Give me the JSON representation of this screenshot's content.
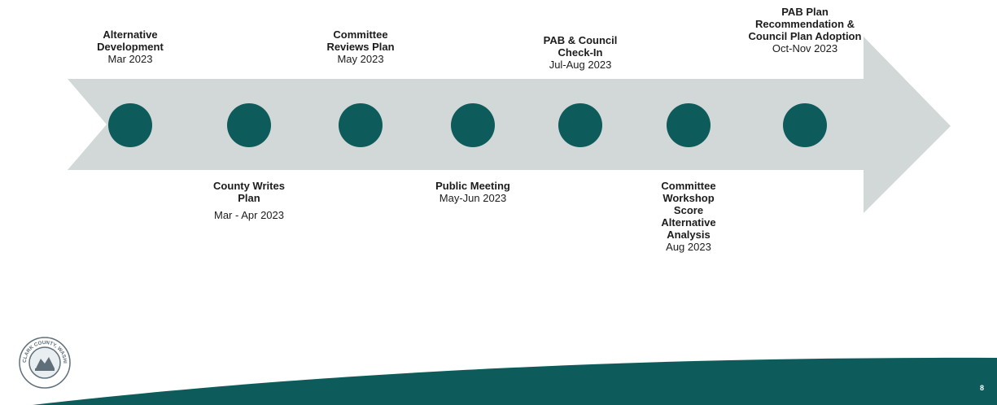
{
  "milestones_top": [
    {
      "title": "Alternative Development",
      "date": "Mar 2023"
    },
    {
      "title": "Committee Reviews Plan",
      "date": "May 2023"
    },
    {
      "title": "PAB & Council Check-In",
      "date": "Jul-Aug 2023"
    },
    {
      "title": "PAB Plan Recommendation & Council Plan Adoption",
      "date": "Oct-Nov 2023"
    }
  ],
  "milestones_bottom": [
    {
      "title": "County Writes Plan",
      "date": "Mar - Apr 2023"
    },
    {
      "title": "Public Meeting",
      "date": "May-Jun 2023"
    },
    {
      "title": "Committee Workshop Score Alternative Analysis",
      "date": "Aug 2023"
    }
  ],
  "colors": {
    "dot": "#0d5c5b",
    "arrow": "#d2d8d8",
    "band": "#0d5c5b"
  },
  "logo": {
    "text": "CLARK COUNTY, WASHINGTON",
    "icon": "county-seal-icon"
  },
  "slide_number": "8"
}
